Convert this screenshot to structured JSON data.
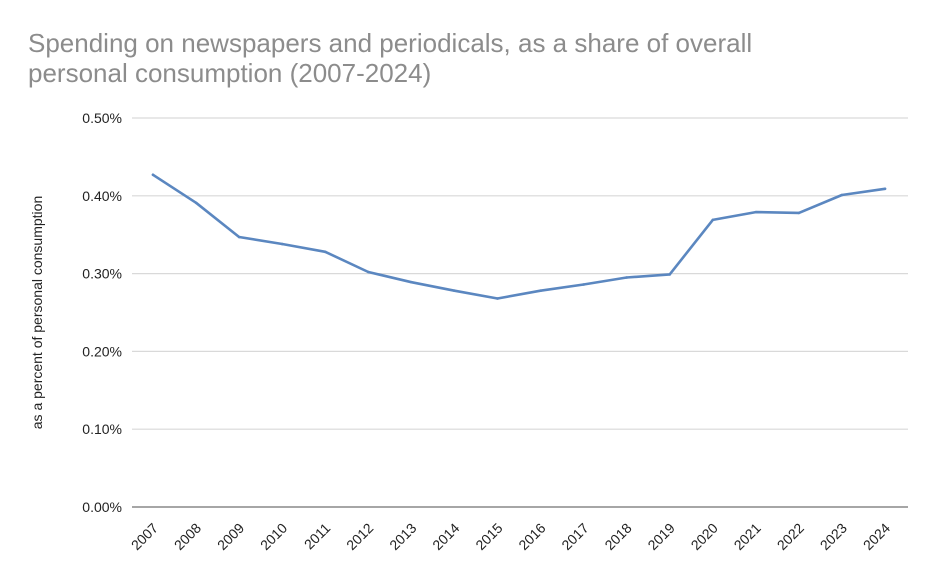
{
  "chart_data": {
    "type": "line",
    "title_lines": [
      "Spending on newspapers and periodicals, as a share of overall",
      "personal consumption (2007-2024)"
    ],
    "ylabel": "as a percent of personal consumption",
    "xlabel": "",
    "ylim": [
      0,
      0.5
    ],
    "yticks": [
      0.0,
      0.1,
      0.2,
      0.3,
      0.4,
      0.5
    ],
    "ytick_labels": [
      "0.00%",
      "0.10%",
      "0.20%",
      "0.30%",
      "0.40%",
      "0.50%"
    ],
    "categories": [
      "2007",
      "2008",
      "2009",
      "2010",
      "2011",
      "2012",
      "2013",
      "2014",
      "2015",
      "2016",
      "2017",
      "2018",
      "2019",
      "2020",
      "2021",
      "2022",
      "2023",
      "2024"
    ],
    "series": [
      {
        "values": [
          0.427,
          0.391,
          0.347,
          0.338,
          0.328,
          0.302,
          0.289,
          0.278,
          0.268,
          0.278,
          0.286,
          0.295,
          0.299,
          0.369,
          0.379,
          0.378,
          0.401,
          0.409
        ],
        "color": "#5b87c0"
      }
    ],
    "grid": true,
    "legend": "none",
    "gridline_color": "#d9d9d9",
    "axis_color": "#888888"
  }
}
